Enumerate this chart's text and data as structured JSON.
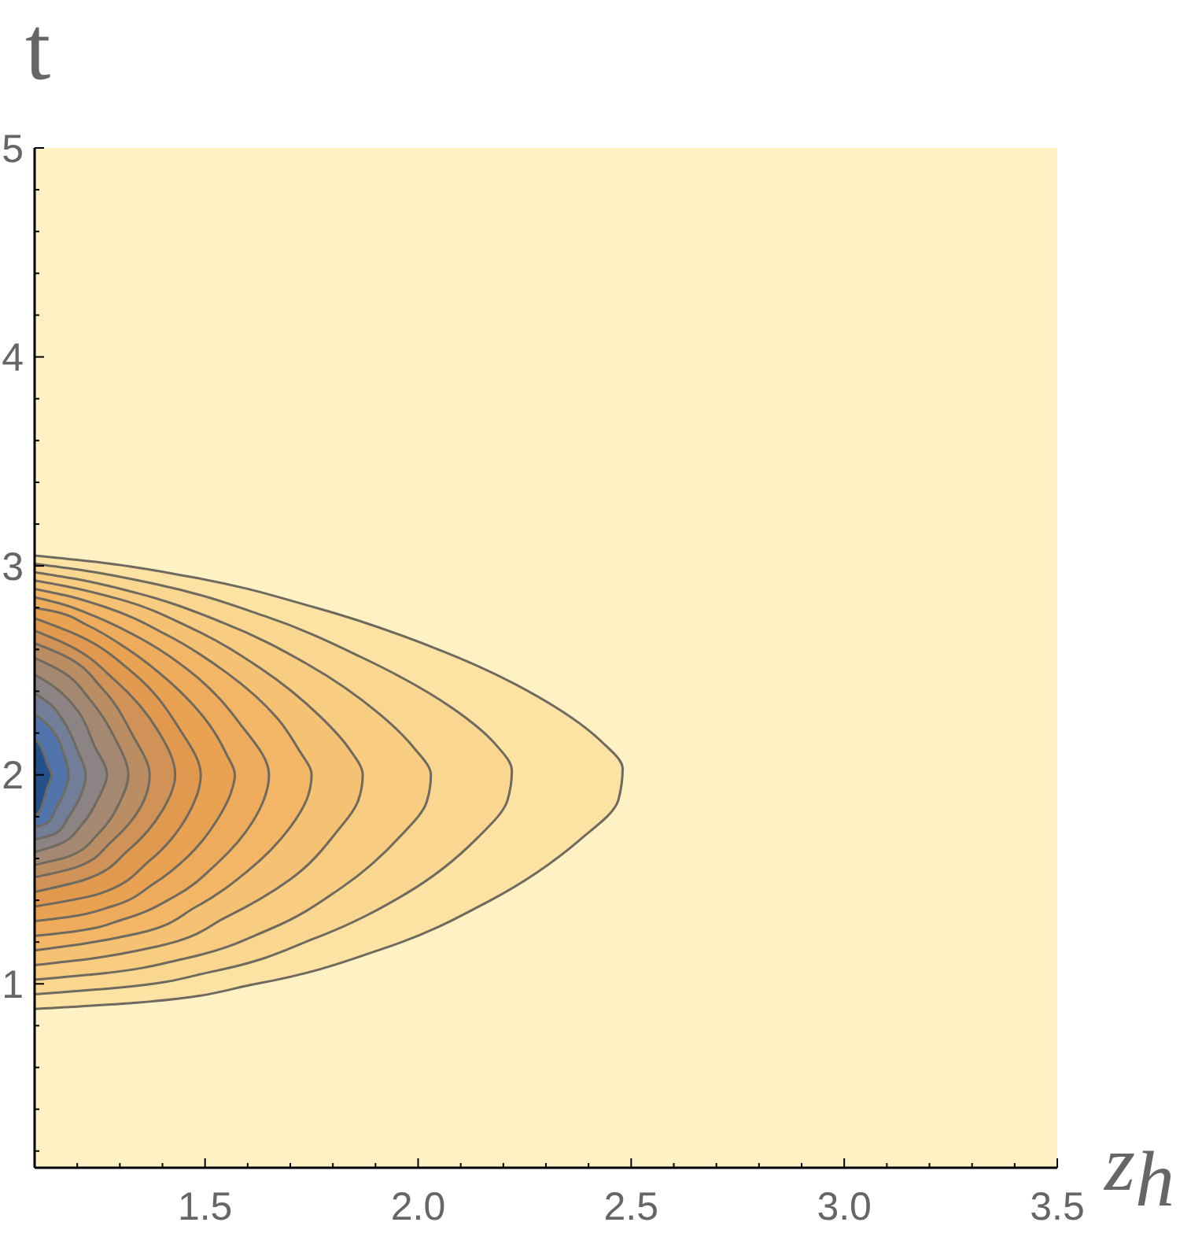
{
  "chart_data": {
    "type": "area",
    "orientation": "horizontal",
    "xlabel": "z$_{h}$",
    "ylabel": "t",
    "xlim": [
      1.1,
      3.5
    ],
    "ylim": [
      0.12,
      5
    ],
    "xticks": [
      {
        "value": 1.2,
        "label": null
      },
      {
        "value": 1.3,
        "label": null
      },
      {
        "value": 1.4,
        "label": null
      },
      1.5,
      {
        "value": 1.6,
        "label": null
      },
      {
        "value": 1.7,
        "label": null
      },
      {
        "value": 1.8,
        "label": null
      },
      {
        "value": 1.9,
        "label": null
      },
      {
        "value": 2,
        "label": "2.0"
      },
      {
        "value": 2.1,
        "label": null
      },
      {
        "value": 2.2,
        "label": null
      },
      {
        "value": 2.3,
        "label": null
      },
      {
        "value": 2.4,
        "label": null
      },
      2.5,
      {
        "value": 2.6,
        "label": null
      },
      {
        "value": 2.7,
        "label": null
      },
      {
        "value": 2.8,
        "label": null
      },
      {
        "value": 2.9,
        "label": null
      },
      {
        "value": 3,
        "label": "3.0"
      },
      {
        "value": 3.1,
        "label": null
      },
      {
        "value": 3.2,
        "label": null
      },
      {
        "value": 3.3,
        "label": null
      },
      {
        "value": 3.4,
        "label": null
      },
      3.5
    ],
    "yticks": [
      {
        "value": 0.2,
        "label": null
      },
      {
        "value": 0.4,
        "label": null
      },
      {
        "value": 0.6,
        "label": null
      },
      {
        "value": 0.8,
        "label": null
      },
      1,
      {
        "value": 1.2,
        "label": null
      },
      {
        "value": 1.4,
        "label": null
      },
      {
        "value": 1.6,
        "label": null
      },
      {
        "value": 1.8,
        "label": null
      },
      2,
      {
        "value": 2.2,
        "label": null
      },
      {
        "value": 2.4,
        "label": null
      },
      {
        "value": 2.6,
        "label": null
      },
      {
        "value": 2.8,
        "label": null
      },
      3,
      {
        "value": 3.2,
        "label": null
      },
      {
        "value": 3.4,
        "label": null
      },
      {
        "value": 3.6,
        "label": null
      },
      {
        "value": 3.8,
        "label": null
      },
      4,
      {
        "value": 4.2,
        "label": null
      },
      {
        "value": 4.4,
        "label": null
      },
      {
        "value": 4.6,
        "label": null
      },
      {
        "value": 4.8,
        "label": null
      },
      5
    ],
    "series": [
      {
        "color": "#fce3a3",
        "x": [
          0.88,
          0.91,
          1.0,
          1.17,
          1.4,
          1.69,
          1.88,
          2.03,
          2.16,
          2.34,
          2.59,
          2.8,
          2.95,
          3.02,
          3.05
        ],
        "values": [
          1.1,
          1.34,
          1.62,
          1.92,
          2.17,
          2.38,
          2.47,
          2.48,
          2.43,
          2.31,
          2.06,
          1.76,
          1.46,
          1.24,
          1.1
        ]
      },
      {
        "color": "#fad791",
        "x": [
          0.95,
          0.98,
          1.06,
          1.22,
          1.43,
          1.7,
          1.88,
          2.02,
          2.15,
          2.32,
          2.56,
          2.76,
          2.91,
          2.98,
          3.01
        ],
        "values": [
          1.1,
          1.29,
          1.52,
          1.76,
          1.97,
          2.14,
          2.21,
          2.22,
          2.18,
          2.08,
          1.87,
          1.64,
          1.39,
          1.21,
          1.1
        ]
      },
      {
        "color": "#f8cc81",
        "x": [
          1.02,
          1.05,
          1.12,
          1.26,
          1.46,
          1.71,
          1.87,
          2.0,
          2.13,
          2.29,
          2.53,
          2.73,
          2.87,
          2.94,
          2.97
        ],
        "values": [
          1.1,
          1.26,
          1.45,
          1.65,
          1.82,
          1.96,
          2.02,
          2.03,
          1.99,
          1.91,
          1.74,
          1.54,
          1.34,
          1.19,
          1.1
        ]
      },
      {
        "color": "#f5c173",
        "x": [
          1.09,
          1.12,
          1.18,
          1.32,
          1.5,
          1.73,
          1.88,
          2.0,
          2.12,
          2.28,
          2.51,
          2.7,
          2.84,
          2.9,
          2.93
        ],
        "values": [
          1.1,
          1.23,
          1.39,
          1.55,
          1.7,
          1.81,
          1.86,
          1.87,
          1.84,
          1.77,
          1.63,
          1.47,
          1.3,
          1.18,
          1.1
        ]
      },
      {
        "color": "#f2b666",
        "x": [
          1.16,
          1.19,
          1.24,
          1.37,
          1.54,
          1.75,
          1.89,
          2.0,
          2.12,
          2.27,
          2.49,
          2.67,
          2.8,
          2.86,
          2.89
        ],
        "values": [
          1.1,
          1.21,
          1.34,
          1.48,
          1.6,
          1.7,
          1.74,
          1.75,
          1.72,
          1.67,
          1.55,
          1.41,
          1.27,
          1.17,
          1.1
        ]
      },
      {
        "color": "#eeab5b",
        "x": [
          1.23,
          1.25,
          1.31,
          1.42,
          1.58,
          1.77,
          2.0,
          2.25,
          2.47,
          2.64,
          2.76,
          2.82,
          2.85
        ],
        "values": [
          1.1,
          1.19,
          1.31,
          1.43,
          1.53,
          1.61,
          1.65,
          1.58,
          1.48,
          1.36,
          1.24,
          1.16,
          1.1
        ]
      },
      {
        "color": "#e9a152",
        "x": [
          1.3,
          1.32,
          1.37,
          1.48,
          1.61,
          1.79,
          1.91,
          2.0,
          2.1,
          2.24,
          2.44,
          2.6,
          2.72,
          2.78,
          2.8
        ],
        "values": [
          1.1,
          1.18,
          1.28,
          1.38,
          1.46,
          1.53,
          1.56,
          1.57,
          1.55,
          1.51,
          1.42,
          1.32,
          1.22,
          1.15,
          1.1
        ]
      },
      {
        "color": "#e0994e",
        "x": [
          1.37,
          1.43,
          1.59,
          1.81,
          2.0,
          2.22,
          2.49,
          2.67,
          2.75
        ],
        "values": [
          1.1,
          1.25,
          1.37,
          1.46,
          1.49,
          1.44,
          1.33,
          1.2,
          1.1
        ]
      },
      {
        "color": "#d09256",
        "x": [
          1.44,
          1.5,
          1.64,
          1.83,
          2.0,
          2.21,
          2.45,
          2.62,
          2.69
        ],
        "values": [
          1.1,
          1.22,
          1.32,
          1.4,
          1.43,
          1.39,
          1.29,
          1.18,
          1.1
        ]
      },
      {
        "color": "#bb8d63",
        "x": [
          1.51,
          1.56,
          1.68,
          1.85,
          2.0,
          2.19,
          2.41,
          2.57,
          2.63
        ],
        "values": [
          1.1,
          1.2,
          1.28,
          1.35,
          1.37,
          1.33,
          1.26,
          1.17,
          1.1
        ]
      },
      {
        "color": "#a48872",
        "x": [
          1.57,
          1.61,
          1.72,
          1.87,
          2.0,
          2.17,
          2.36,
          2.5,
          2.56
        ],
        "values": [
          1.1,
          1.18,
          1.25,
          1.3,
          1.32,
          1.29,
          1.23,
          1.16,
          1.1
        ]
      },
      {
        "color": "#8c8384",
        "x": [
          1.63,
          1.67,
          1.76,
          1.89,
          2.0,
          2.14,
          2.31,
          2.43,
          2.48
        ],
        "values": [
          1.1,
          1.16,
          1.21,
          1.25,
          1.27,
          1.24,
          1.2,
          1.14,
          1.1
        ]
      },
      {
        "color": "#727e98",
        "x": [
          1.69,
          1.72,
          1.8,
          1.91,
          2.0,
          2.12,
          2.25,
          2.35,
          2.39
        ],
        "values": [
          1.1,
          1.15,
          1.18,
          1.21,
          1.22,
          1.2,
          1.17,
          1.13,
          1.1
        ]
      },
      {
        "color": "#5274ad",
        "x": [
          1.75,
          1.77,
          1.84,
          1.92,
          2.0,
          2.09,
          2.19,
          2.26,
          2.29
        ],
        "values": [
          1.1,
          1.13,
          1.15,
          1.17,
          1.18,
          1.17,
          1.15,
          1.12,
          1.1
        ]
      },
      {
        "color": "#24508c",
        "x": [
          1.8,
          1.82,
          1.87,
          1.94,
          2.0,
          2.05,
          2.11,
          2.15,
          2.17
        ],
        "values": [
          1.1,
          1.11,
          1.12,
          1.13,
          1.14,
          1.13,
          1.12,
          1.11,
          1.1
        ]
      }
    ]
  }
}
